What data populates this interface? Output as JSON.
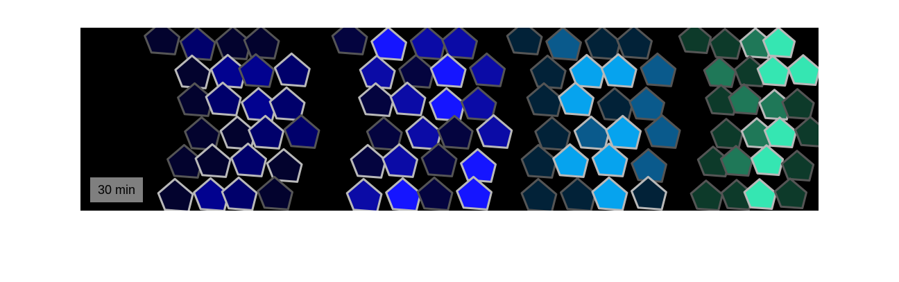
{
  "figure": {
    "time_label": "30 min",
    "panels": [
      {
        "name": "blue-panel-1",
        "palette": {
          "dark": "#03032e",
          "mid": "#00006b",
          "bright": "#02028f"
        },
        "border_colors": {
          "light": "#b9b9b9",
          "dark": "#555555"
        },
        "cells": [
          {
            "shade": "dark",
            "border": "dark"
          },
          {
            "shade": "mid",
            "border": "dark"
          },
          {
            "shade": "dark",
            "border": "dark"
          },
          {
            "shade": "dark",
            "border": "dark"
          },
          {
            "shade": "dark",
            "border": "light"
          },
          {
            "shade": "bright",
            "border": "light"
          },
          {
            "shade": "bright",
            "border": "dark"
          },
          {
            "shade": "mid",
            "border": "light"
          },
          {
            "shade": "dark",
            "border": "dark"
          },
          {
            "shade": "mid",
            "border": "light"
          },
          {
            "shade": "bright",
            "border": "light"
          },
          {
            "shade": "mid",
            "border": "light"
          },
          {
            "shade": "dark",
            "border": "dark"
          },
          {
            "shade": "dark",
            "border": "light"
          },
          {
            "shade": "mid",
            "border": "light"
          },
          {
            "shade": "mid",
            "border": "dark"
          },
          {
            "shade": "dark",
            "border": "dark"
          },
          {
            "shade": "dark",
            "border": "light"
          },
          {
            "shade": "mid",
            "border": "light"
          },
          {
            "shade": "dark",
            "border": "light"
          },
          {
            "shade": "dark",
            "border": "light"
          },
          {
            "shade": "bright",
            "border": "light"
          },
          {
            "shade": "mid",
            "border": "light"
          },
          {
            "shade": "dark",
            "border": "dark"
          }
        ]
      },
      {
        "name": "blue-panel-2",
        "palette": {
          "dark": "#04043f",
          "mid": "#0b0ba6",
          "bright": "#1515ff"
        },
        "border_colors": {
          "light": "#b9b9b9",
          "dark": "#555555"
        },
        "cells": [
          {
            "shade": "dark",
            "border": "dark"
          },
          {
            "shade": "bright",
            "border": "light"
          },
          {
            "shade": "mid",
            "border": "dark"
          },
          {
            "shade": "mid",
            "border": "dark"
          },
          {
            "shade": "mid",
            "border": "light"
          },
          {
            "shade": "dark",
            "border": "dark"
          },
          {
            "shade": "bright",
            "border": "light"
          },
          {
            "shade": "mid",
            "border": "dark"
          },
          {
            "shade": "dark",
            "border": "light"
          },
          {
            "shade": "mid",
            "border": "light"
          },
          {
            "shade": "bright",
            "border": "light"
          },
          {
            "shade": "mid",
            "border": "dark"
          },
          {
            "shade": "dark",
            "border": "dark"
          },
          {
            "shade": "mid",
            "border": "light"
          },
          {
            "shade": "dark",
            "border": "dark"
          },
          {
            "shade": "mid",
            "border": "light"
          },
          {
            "shade": "dark",
            "border": "light"
          },
          {
            "shade": "mid",
            "border": "light"
          },
          {
            "shade": "dark",
            "border": "dark"
          },
          {
            "shade": "bright",
            "border": "light"
          },
          {
            "shade": "mid",
            "border": "light"
          },
          {
            "shade": "bright",
            "border": "light"
          },
          {
            "shade": "dark",
            "border": "dark"
          },
          {
            "shade": "bright",
            "border": "light"
          }
        ]
      },
      {
        "name": "cyan-panel",
        "palette": {
          "dark": "#022238",
          "mid": "#0a5a8c",
          "bright": "#06a3ee"
        },
        "border_colors": {
          "light": "#b9b9b9",
          "dark": "#555555"
        },
        "cells": [
          {
            "shade": "dark",
            "border": "dark"
          },
          {
            "shade": "mid",
            "border": "dark"
          },
          {
            "shade": "dark",
            "border": "dark"
          },
          {
            "shade": "dark",
            "border": "dark"
          },
          {
            "shade": "dark",
            "border": "dark"
          },
          {
            "shade": "bright",
            "border": "light"
          },
          {
            "shade": "bright",
            "border": "light"
          },
          {
            "shade": "mid",
            "border": "dark"
          },
          {
            "shade": "dark",
            "border": "dark"
          },
          {
            "shade": "bright",
            "border": "light"
          },
          {
            "shade": "dark",
            "border": "dark"
          },
          {
            "shade": "mid",
            "border": "dark"
          },
          {
            "shade": "dark",
            "border": "dark"
          },
          {
            "shade": "mid",
            "border": "light"
          },
          {
            "shade": "bright",
            "border": "light"
          },
          {
            "shade": "mid",
            "border": "dark"
          },
          {
            "shade": "dark",
            "border": "dark"
          },
          {
            "shade": "bright",
            "border": "light"
          },
          {
            "shade": "bright",
            "border": "light"
          },
          {
            "shade": "mid",
            "border": "dark"
          },
          {
            "shade": "dark",
            "border": "dark"
          },
          {
            "shade": "dark",
            "border": "dark"
          },
          {
            "shade": "bright",
            "border": "light"
          },
          {
            "shade": "dark",
            "border": "light"
          }
        ]
      },
      {
        "name": "green-panel",
        "palette": {
          "dark": "#0d3a2a",
          "mid": "#1f7858",
          "bright": "#35e6b2"
        },
        "border_colors": {
          "light": "#b9b9b9",
          "dark": "#555555"
        },
        "cells": [
          {
            "shade": "dark",
            "border": "dark"
          },
          {
            "shade": "dark",
            "border": "dark"
          },
          {
            "shade": "mid",
            "border": "light"
          },
          {
            "shade": "bright",
            "border": "light"
          },
          {
            "shade": "mid",
            "border": "dark"
          },
          {
            "shade": "dark",
            "border": "dark"
          },
          {
            "shade": "bright",
            "border": "light"
          },
          {
            "shade": "bright",
            "border": "light"
          },
          {
            "shade": "dark",
            "border": "dark"
          },
          {
            "shade": "mid",
            "border": "dark"
          },
          {
            "shade": "mid",
            "border": "light"
          },
          {
            "shade": "dark",
            "border": "dark"
          },
          {
            "shade": "dark",
            "border": "dark"
          },
          {
            "shade": "mid",
            "border": "light"
          },
          {
            "shade": "bright",
            "border": "light"
          },
          {
            "shade": "dark",
            "border": "dark"
          },
          {
            "shade": "dark",
            "border": "dark"
          },
          {
            "shade": "mid",
            "border": "dark"
          },
          {
            "shade": "bright",
            "border": "light"
          },
          {
            "shade": "dark",
            "border": "dark"
          },
          {
            "shade": "dark",
            "border": "dark"
          },
          {
            "shade": "dark",
            "border": "dark"
          },
          {
            "shade": "bright",
            "border": "light"
          },
          {
            "shade": "dark",
            "border": "dark"
          }
        ]
      }
    ]
  }
}
